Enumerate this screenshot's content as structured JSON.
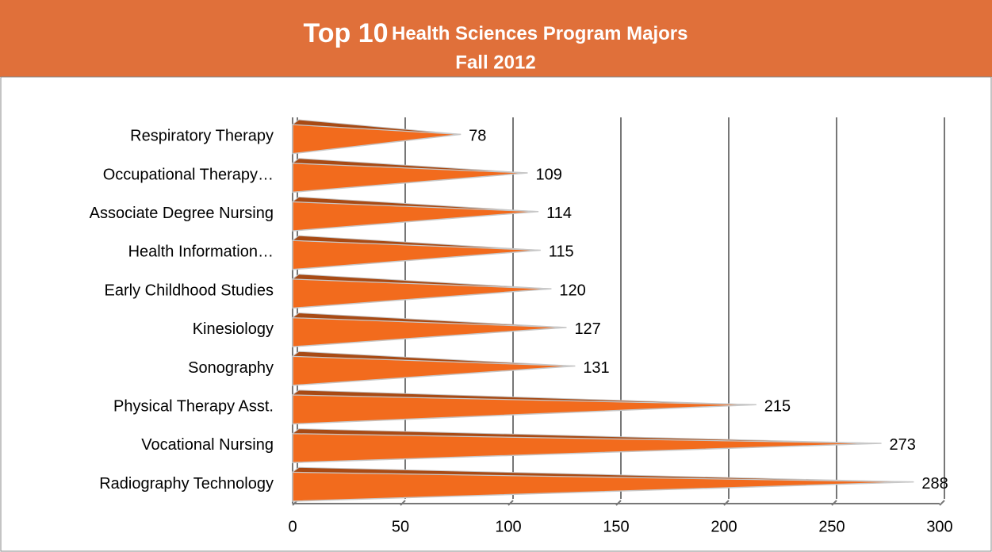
{
  "chart_data": {
    "type": "bar",
    "orientation": "horizontal",
    "title": [
      "Top 10",
      "Health Sciences Program Majors"
    ],
    "subtitle": "Fall 2012",
    "categories": [
      "Respiratory Therapy",
      "Occupational Therapy…",
      "Associate Degree Nursing",
      "Health Information…",
      "Early Childhood Studies",
      "Kinesiology",
      "Sonography",
      "Physical Therapy Asst.",
      "Vocational Nursing",
      "Radiography Technology"
    ],
    "values": [
      78,
      109,
      114,
      115,
      120,
      127,
      131,
      215,
      273,
      288
    ],
    "color": "#f26b1d",
    "xlim": [
      0,
      300
    ],
    "xticks": [
      0,
      50,
      100,
      150,
      200,
      250,
      300
    ],
    "grid": true
  }
}
